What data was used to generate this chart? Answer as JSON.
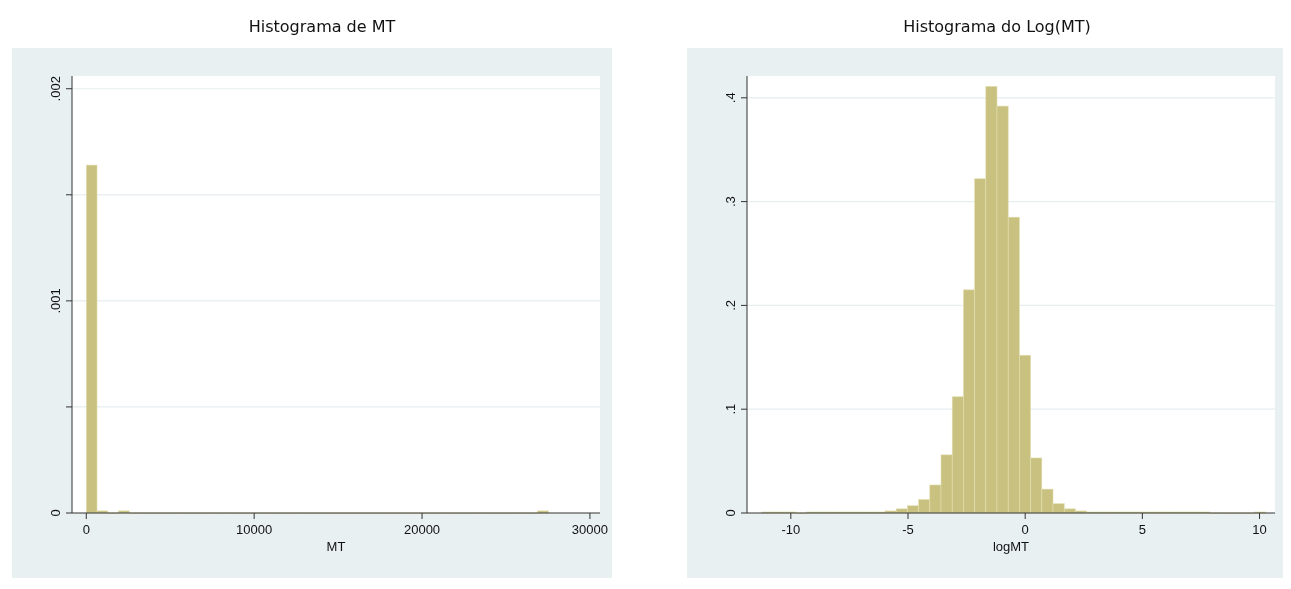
{
  "chart_data": [
    {
      "type": "histogram",
      "title": "Histograma de MT",
      "xlabel": "MT",
      "color": "#c9c17f",
      "bins": [
        0,
        640,
        1280,
        1920,
        2560,
        3200,
        3840,
        4480,
        5120,
        5760,
        6400,
        7040,
        7680,
        8320,
        8960,
        9600,
        10240,
        10880,
        11520,
        12160,
        12800,
        13440,
        14080,
        14720,
        15360,
        16000,
        16640,
        17280,
        17920,
        18560,
        19200,
        19840,
        20480,
        21120,
        21760,
        22400,
        23040,
        23680,
        24320,
        24960,
        25600,
        26240,
        26880,
        27520
      ],
      "values": [
        0.00164,
        1e-05,
        0,
        1e-05,
        0,
        0,
        0,
        0,
        0,
        0,
        0,
        0,
        0,
        0,
        0,
        0,
        0,
        0,
        0,
        0,
        0,
        0,
        0,
        0,
        0,
        0,
        0,
        0,
        0,
        0,
        0,
        0,
        0,
        0,
        0,
        0,
        0,
        0,
        0,
        0,
        0,
        0,
        1e-05
      ],
      "xlim": [
        -850,
        30600
      ],
      "xticks": [
        0,
        10000,
        20000,
        30000
      ],
      "ylim": [
        0,
        0.00206
      ],
      "yticks": [
        0,
        {
          "value": 0.0005,
          "label": null
        },
        {
          "value": 0.001,
          "label": ".001"
        },
        {
          "value": 0.0015,
          "label": null
        },
        {
          "value": 0.002,
          "label": ".002"
        }
      ],
      "grid": "y"
    },
    {
      "type": "histogram",
      "title": "Histograma do Log(MT)",
      "xlabel": "logMT",
      "color": "#c9c17f",
      "bins": [
        -11.24,
        -10.762,
        -10.284,
        -9.806,
        -9.328,
        -8.85,
        -8.372,
        -7.894,
        -7.416,
        -6.938,
        -6.46,
        -5.982,
        -5.504,
        -5.026,
        -4.548,
        -4.07,
        -3.592,
        -3.114,
        -2.636,
        -2.158,
        -1.68,
        -1.202,
        -0.724,
        -0.246,
        0.232,
        0.71,
        1.188,
        1.666,
        2.144,
        2.622,
        3.1,
        3.578,
        4.056,
        4.534,
        5.012,
        5.49,
        5.968,
        6.446,
        6.924,
        7.402,
        7.88,
        8.358,
        8.836,
        9.314,
        9.792,
        10.27
      ],
      "values": [
        0.001,
        0.001,
        0.001,
        0,
        0.001,
        0.001,
        0.001,
        0.001,
        0.001,
        0.001,
        0.001,
        0.002,
        0.004,
        0.007,
        0.013,
        0.027,
        0.056,
        0.112,
        0.215,
        0.322,
        0.411,
        0.392,
        0.285,
        0.152,
        0.053,
        0.023,
        0.009,
        0.004,
        0.002,
        0.001,
        0.001,
        0.001,
        0.001,
        0.001,
        0.001,
        0.001,
        0.001,
        0.001,
        0.001,
        0.001,
        0,
        0,
        0,
        0,
        0.001
      ],
      "xlim": [
        -11.87,
        10.66
      ],
      "xticks": [
        -10,
        -5,
        0,
        5,
        10
      ],
      "ylim": [
        0,
        0.421
      ],
      "yticks": [
        0,
        {
          "value": 0.1,
          "label": ".1"
        },
        {
          "value": 0.2,
          "label": ".2"
        },
        {
          "value": 0.3,
          "label": ".3"
        },
        {
          "value": 0.4,
          "label": ".4"
        }
      ],
      "grid": "y"
    }
  ]
}
